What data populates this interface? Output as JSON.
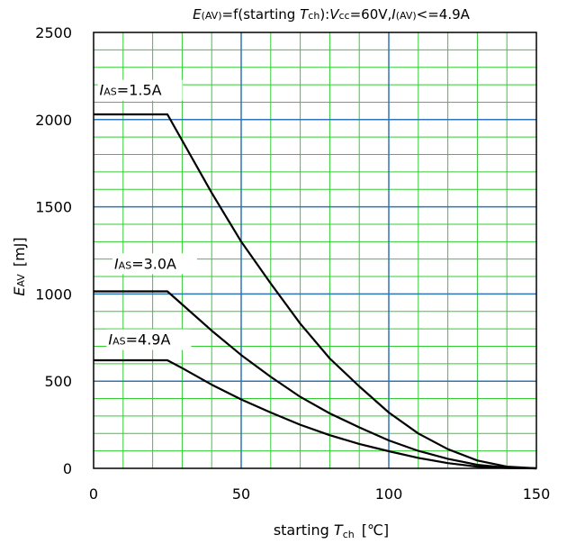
{
  "chart_data": {
    "type": "line",
    "title": {
      "e": "E",
      "e_sub": "(AV)",
      "mid": "=f(starting ",
      "t": "T",
      "t_sub": "ch",
      "sep": "):",
      "v": "V",
      "v_sub": "cc",
      "vval": "=60V,",
      "i": "I",
      "i_sub": "(AV)",
      "ival": "<=4.9A"
    },
    "xlabel": {
      "pre": "starting ",
      "t": "T",
      "sub": "ch",
      "unit": "[℃]"
    },
    "ylabel": {
      "e": "E",
      "sub": "AV",
      "unit": "[mJ]"
    },
    "xlim": [
      0,
      150
    ],
    "ylim": [
      0,
      2500
    ],
    "x_ticks": [
      0,
      50,
      100,
      150
    ],
    "y_ticks": [
      0,
      500,
      1000,
      1500,
      2000,
      2500
    ],
    "x_tick_labels": [
      "0",
      "50",
      "100",
      "150"
    ],
    "y_tick_labels": [
      "0",
      "500",
      "1000",
      "1500",
      "2000",
      "2500"
    ],
    "minor_x_step": 10,
    "minor_y_step": 100,
    "grid": true,
    "series": [
      {
        "label_i": "I",
        "label_sub": "AS",
        "label_val": "=1.5A",
        "label_at": [
          2,
          2140
        ],
        "points": [
          [
            0,
            2030
          ],
          [
            25,
            2030
          ],
          [
            30,
            1880
          ],
          [
            40,
            1580
          ],
          [
            50,
            1300
          ],
          [
            60,
            1060
          ],
          [
            70,
            830
          ],
          [
            80,
            630
          ],
          [
            90,
            470
          ],
          [
            100,
            320
          ],
          [
            110,
            200
          ],
          [
            120,
            110
          ],
          [
            130,
            45
          ],
          [
            140,
            10
          ],
          [
            150,
            0
          ]
        ]
      },
      {
        "label_i": "I",
        "label_sub": "AS",
        "label_val": "=3.0A",
        "label_at": [
          7,
          1145
        ],
        "points": [
          [
            0,
            1015
          ],
          [
            25,
            1015
          ],
          [
            30,
            940
          ],
          [
            40,
            790
          ],
          [
            50,
            650
          ],
          [
            60,
            525
          ],
          [
            70,
            410
          ],
          [
            80,
            315
          ],
          [
            90,
            235
          ],
          [
            100,
            160
          ],
          [
            110,
            100
          ],
          [
            120,
            55
          ],
          [
            130,
            20
          ],
          [
            140,
            4
          ],
          [
            150,
            0
          ]
        ]
      },
      {
        "label_i": "I",
        "label_sub": "AS",
        "label_val": "=4.9A",
        "label_at": [
          5,
          710
        ],
        "points": [
          [
            0,
            620
          ],
          [
            25,
            620
          ],
          [
            30,
            575
          ],
          [
            40,
            480
          ],
          [
            50,
            395
          ],
          [
            60,
            320
          ],
          [
            70,
            250
          ],
          [
            80,
            190
          ],
          [
            90,
            140
          ],
          [
            100,
            98
          ],
          [
            110,
            60
          ],
          [
            120,
            30
          ],
          [
            130,
            10
          ],
          [
            140,
            2
          ],
          [
            150,
            0
          ]
        ]
      }
    ],
    "colors": {
      "minor_grid": "#33cc33",
      "major_grid": "#2e75b6",
      "curve": "#000000",
      "frame": "#000000"
    }
  }
}
